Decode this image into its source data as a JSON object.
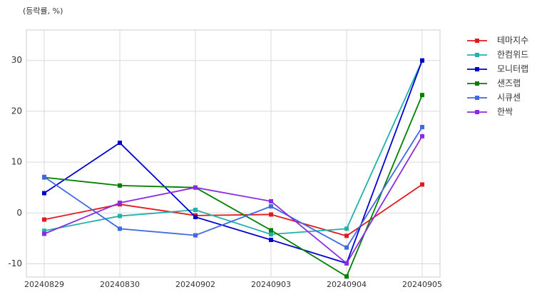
{
  "chart_data": {
    "type": "line",
    "y_label": "(등락률, %)",
    "categories": [
      "20240829",
      "20240830",
      "20240902",
      "20240903",
      "20240904",
      "20240905"
    ],
    "series": [
      {
        "name": "테마지수",
        "color": "#e31a1c",
        "values": [
          -1.3,
          1.7,
          -0.5,
          -0.3,
          -4.5,
          5.6
        ]
      },
      {
        "name": "한컴위드",
        "color": "#20b2aa",
        "values": [
          -3.5,
          -0.6,
          0.6,
          -4.2,
          -3.1,
          30.0
        ]
      },
      {
        "name": "모니터랩",
        "color": "#0000cd",
        "values": [
          3.9,
          13.8,
          -0.8,
          -5.3,
          -9.9,
          30.0
        ]
      },
      {
        "name": "샌즈랩",
        "color": "#008000",
        "values": [
          7.0,
          5.4,
          5.0,
          -3.4,
          -12.5,
          23.2
        ]
      },
      {
        "name": "시큐센",
        "color": "#4169e1",
        "values": [
          7.1,
          -3.1,
          -4.4,
          1.3,
          -6.8,
          16.9
        ]
      },
      {
        "name": "한싹",
        "color": "#8a2be2",
        "values": [
          -4.1,
          2.0,
          5.0,
          2.3,
          -9.9,
          15.1
        ]
      }
    ],
    "ylim": [
      -12.6,
      36
    ],
    "yticks": [
      -10,
      0,
      10,
      20,
      30
    ],
    "grid": true,
    "legend": "outside-right"
  }
}
